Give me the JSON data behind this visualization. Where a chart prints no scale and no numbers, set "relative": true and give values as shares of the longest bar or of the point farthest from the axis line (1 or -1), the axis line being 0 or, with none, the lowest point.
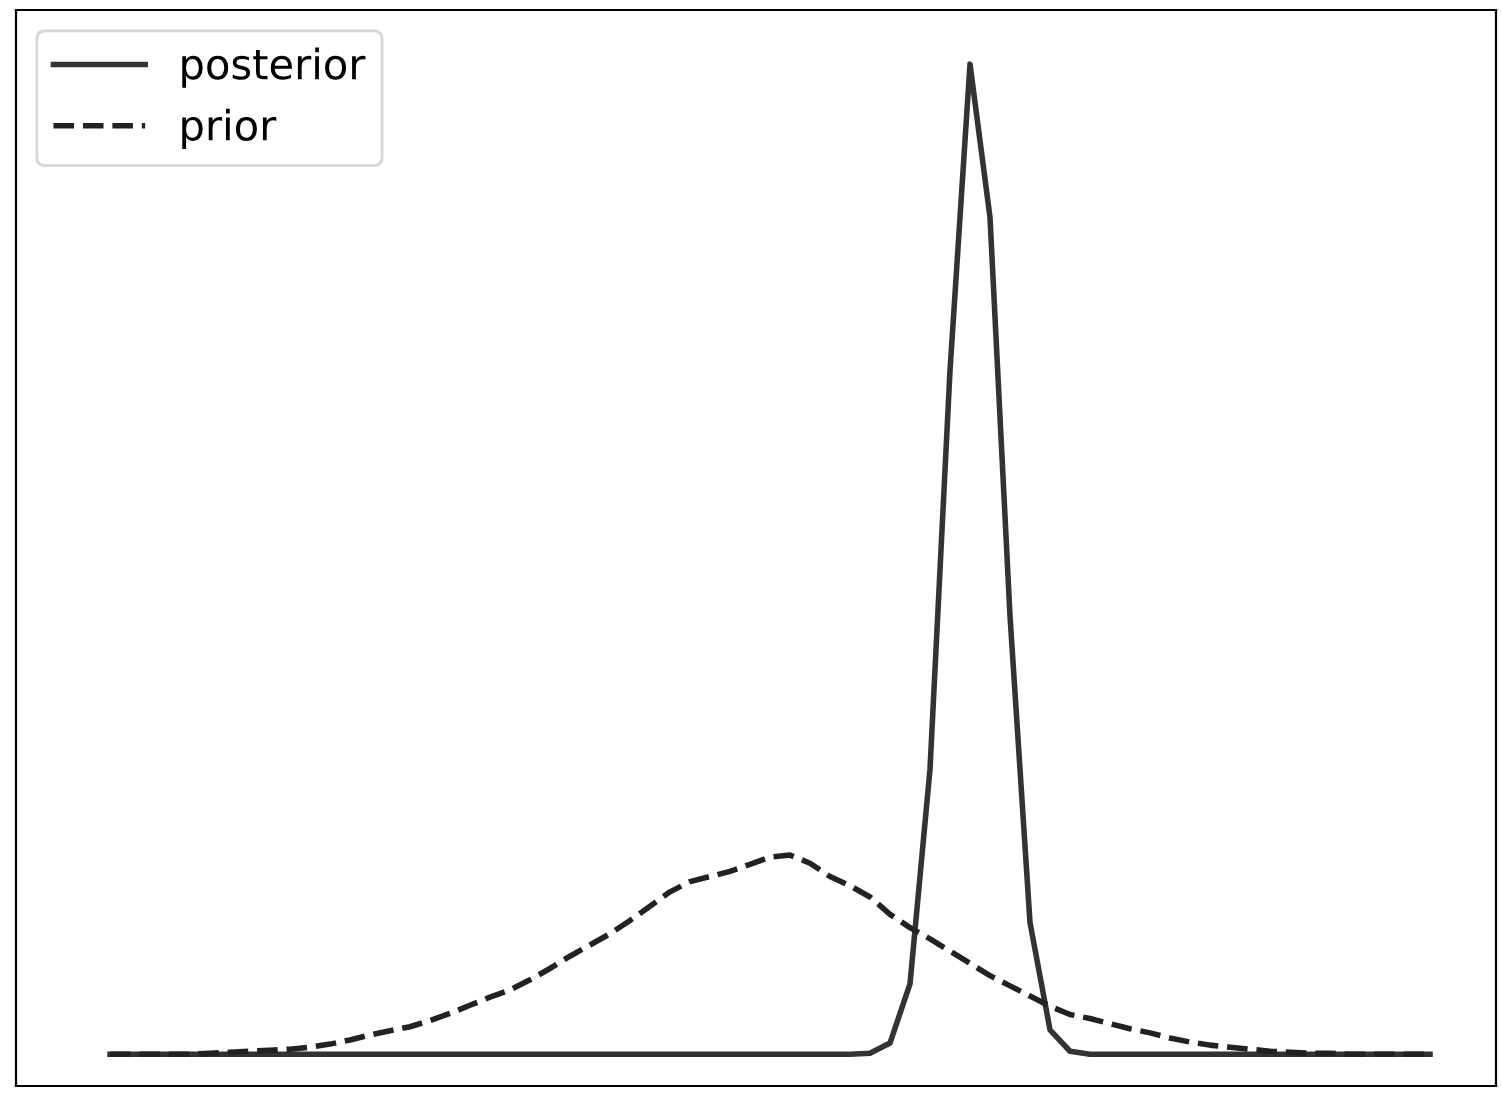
{
  "chart_data": {
    "type": "line",
    "relative": true,
    "legend": "top left",
    "categories": [
      null,
      null,
      null,
      null,
      null,
      null,
      null,
      null,
      null,
      null,
      null,
      null,
      null,
      null,
      null,
      null,
      null,
      null,
      null,
      null,
      null,
      null,
      null,
      null,
      null,
      null,
      null,
      null,
      null,
      null,
      null,
      null,
      null,
      null,
      null,
      null,
      null,
      null,
      null,
      null,
      null,
      null,
      null,
      null,
      null,
      null,
      null,
      null,
      null,
      null,
      null,
      null,
      null,
      null,
      null,
      null,
      null,
      null,
      null,
      null,
      null,
      null,
      null,
      null,
      null,
      null,
      null
    ],
    "series": [
      {
        "name": "posterior",
        "color": "#333333",
        "line_style": "solid",
        "values": [
          0.031,
          0.031,
          0.031,
          0.031,
          0.031,
          0.031,
          0.031,
          0.031,
          0.031,
          0.031,
          0.031,
          0.031,
          0.031,
          0.031,
          0.031,
          0.031,
          0.031,
          0.031,
          0.031,
          0.031,
          0.031,
          0.031,
          0.031,
          0.031,
          0.031,
          0.031,
          0.031,
          0.031,
          0.031,
          0.031,
          0.031,
          0.031,
          0.031,
          0.031,
          0.031,
          0.031,
          0.031,
          0.031,
          0.032,
          0.042,
          0.1,
          0.31,
          0.7,
          1.0,
          0.85,
          0.46,
          0.16,
          0.055,
          0.034,
          0.031,
          0.031,
          0.031,
          0.031,
          0.031,
          0.031,
          0.031,
          0.031,
          0.031,
          0.031,
          0.031,
          0.031,
          0.031,
          0.031,
          0.031,
          0.031,
          0.031,
          0.031
        ]
      },
      {
        "name": "prior",
        "color": "#222222",
        "line_style": "dashed",
        "values": [
          0.031,
          0.031,
          0.031,
          0.031,
          0.031,
          0.032,
          0.033,
          0.034,
          0.035,
          0.036,
          0.038,
          0.041,
          0.045,
          0.05,
          0.054,
          0.058,
          0.064,
          0.071,
          0.079,
          0.087,
          0.094,
          0.104,
          0.115,
          0.127,
          0.138,
          0.149,
          0.162,
          0.176,
          0.19,
          0.2,
          0.205,
          0.21,
          0.217,
          0.224,
          0.226,
          0.218,
          0.205,
          0.196,
          0.185,
          0.168,
          0.155,
          0.144,
          0.132,
          0.12,
          0.108,
          0.098,
          0.088,
          0.078,
          0.07,
          0.066,
          0.061,
          0.056,
          0.052,
          0.047,
          0.043,
          0.04,
          0.038,
          0.036,
          0.034,
          0.033,
          0.032,
          0.032,
          0.031,
          0.031,
          0.031,
          0.031,
          0.031
        ]
      }
    ]
  }
}
